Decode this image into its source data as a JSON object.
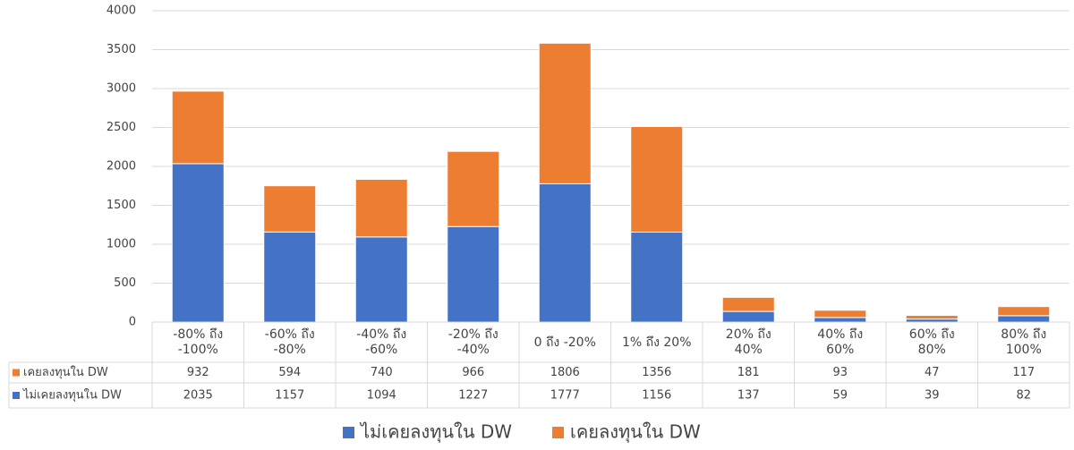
{
  "chart_data": {
    "type": "stacked_bar",
    "categories": [
      "-80% ถึง\n-100%",
      "-60% ถึง\n-80%",
      "-40% ถึง\n-60%",
      "-20% ถึง\n-40%",
      "0 ถึง -20%",
      "1% ถึง 20%",
      "20% ถึง\n40%",
      "40% ถึง\n60%",
      "60% ถึง\n80%",
      "80% ถึง\n100%"
    ],
    "series": [
      {
        "name": "ไม่เคยลงทุนใน DW",
        "color": "#4472c4",
        "values": [
          2035,
          1157,
          1094,
          1227,
          1777,
          1156,
          137,
          59,
          39,
          82
        ]
      },
      {
        "name": "เคยลงทุนใน DW",
        "color": "#ed7d31",
        "values": [
          932,
          594,
          740,
          966,
          1806,
          1356,
          181,
          93,
          47,
          117
        ]
      }
    ],
    "ylim": [
      0,
      4000
    ],
    "yticks": [
      0,
      500,
      1000,
      1500,
      2000,
      2500,
      3000,
      3500,
      4000
    ],
    "grid": true
  }
}
